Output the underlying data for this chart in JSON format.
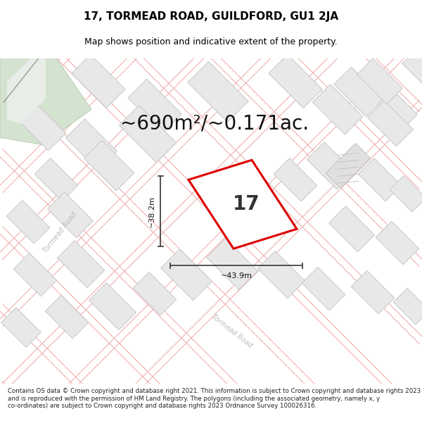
{
  "title": "17, TORMEAD ROAD, GUILDFORD, GU1 2JA",
  "subtitle": "Map shows position and indicative extent of the property.",
  "area_label": "~690m²/~0.171ac.",
  "property_number": "17",
  "width_label": "~43.9m",
  "height_label": "~38.2m",
  "footer": "Contains OS data © Crown copyright and database right 2021. This information is subject to Crown copyright and database rights 2023 and is reproduced with the permission of HM Land Registry. The polygons (including the associated geometry, namely x, y co-ordinates) are subject to Crown copyright and database rights 2023 Ordnance Survey 100026316.",
  "map_bg": "#f7f7f7",
  "property_color": "#dd0000",
  "road_line_color": "#f0b0b0",
  "block_face_color": "#e8e8e8",
  "block_edge_color": "#c8c8c8",
  "green_color": "#d4e3d0",
  "white_strip_color": "#f8f8f8",
  "title_fontsize": 11,
  "subtitle_fontsize": 9,
  "area_fontsize": 20,
  "number_fontsize": 20,
  "measure_fontsize": 8,
  "footer_fontsize": 6.2,
  "road_label_color": "#bbbbbb",
  "road_label_fontsize": 7
}
